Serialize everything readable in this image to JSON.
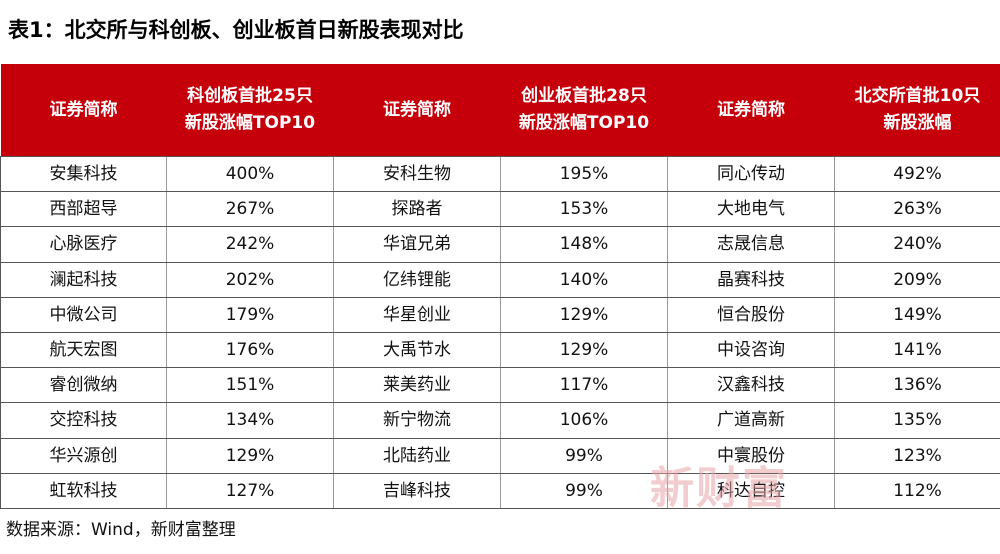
{
  "title": "表1：北交所与科创板、创业板首日新股表现对比",
  "headers": [
    {
      "line1": "证券简称",
      "line2": ""
    },
    {
      "line1": "科创板首批25只",
      "line2": "新股涨幅TOP10"
    },
    {
      "line1": "证券简称",
      "line2": ""
    },
    {
      "line1": "创业板首批28只",
      "line2": "新股涨幅TOP10"
    },
    {
      "line1": "证券简称",
      "line2": ""
    },
    {
      "line1": "北交所首批10只",
      "line2": "新股涨幅"
    }
  ],
  "rows": [
    [
      "安集科技",
      "400%",
      "安科生物",
      "195%",
      "同心传动",
      "492%"
    ],
    [
      "西部超导",
      "267%",
      "探路者",
      "153%",
      "大地电气",
      "263%"
    ],
    [
      "心脉医疗",
      "242%",
      "华谊兄弟",
      "148%",
      "志晟信息",
      "240%"
    ],
    [
      "澜起科技",
      "202%",
      "亿纬锂能",
      "140%",
      "晶赛科技",
      "209%"
    ],
    [
      "中微公司",
      "179%",
      "华星创业",
      "129%",
      "恒合股份",
      "149%"
    ],
    [
      "航天宏图",
      "176%",
      "大禹节水",
      "129%",
      "中设咨询",
      "141%"
    ],
    [
      "睿创微纳",
      "151%",
      "莱美药业",
      "117%",
      "汉鑫科技",
      "136%"
    ],
    [
      "交控科技",
      "134%",
      "新宁物流",
      "106%",
      "广道高新",
      "135%"
    ],
    [
      "华兴源创",
      "129%",
      "北陆药业",
      "99%",
      "中寰股份",
      "123%"
    ],
    [
      "虹软科技",
      "127%",
      "吉峰科技",
      "99%",
      "科达自控",
      "112%"
    ]
  ],
  "watermark": "新财富",
  "source": "数据来源：Wind，新财富整理",
  "colors": {
    "header_bg": "#c6000b",
    "header_text": "#ffffff"
  }
}
